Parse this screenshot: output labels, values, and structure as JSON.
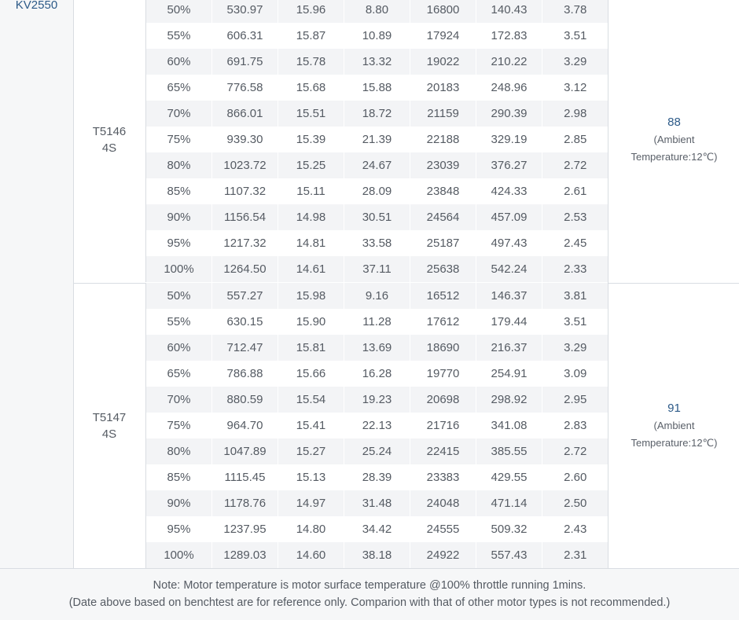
{
  "motor": {
    "kv": "KV2550"
  },
  "groups": [
    {
      "prop": "T5146",
      "cells": "4S",
      "max_temp": "88",
      "ambient_line1": "(Ambient",
      "ambient_line2": "Temperature:12℃)",
      "rows": [
        [
          "50%",
          "530.97",
          "15.96",
          "8.80",
          "16800",
          "140.43",
          "3.78"
        ],
        [
          "55%",
          "606.31",
          "15.87",
          "10.89",
          "17924",
          "172.83",
          "3.51"
        ],
        [
          "60%",
          "691.75",
          "15.78",
          "13.32",
          "19022",
          "210.22",
          "3.29"
        ],
        [
          "65%",
          "776.58",
          "15.68",
          "15.88",
          "20183",
          "248.96",
          "3.12"
        ],
        [
          "70%",
          "866.01",
          "15.51",
          "18.72",
          "21159",
          "290.39",
          "2.98"
        ],
        [
          "75%",
          "939.30",
          "15.39",
          "21.39",
          "22188",
          "329.19",
          "2.85"
        ],
        [
          "80%",
          "1023.72",
          "15.25",
          "24.67",
          "23039",
          "376.27",
          "2.72"
        ],
        [
          "85%",
          "1107.32",
          "15.11",
          "28.09",
          "23848",
          "424.33",
          "2.61"
        ],
        [
          "90%",
          "1156.54",
          "14.98",
          "30.51",
          "24564",
          "457.09",
          "2.53"
        ],
        [
          "95%",
          "1217.32",
          "14.81",
          "33.58",
          "25187",
          "497.43",
          "2.45"
        ],
        [
          "100%",
          "1264.50",
          "14.61",
          "37.11",
          "25638",
          "542.24",
          "2.33"
        ]
      ]
    },
    {
      "prop": "T5147",
      "cells": "4S",
      "max_temp": "91",
      "ambient_line1": "(Ambient",
      "ambient_line2": "Temperature:12℃)",
      "rows": [
        [
          "50%",
          "557.27",
          "15.98",
          "9.16",
          "16512",
          "146.37",
          "3.81"
        ],
        [
          "55%",
          "630.15",
          "15.90",
          "11.28",
          "17612",
          "179.44",
          "3.51"
        ],
        [
          "60%",
          "712.47",
          "15.81",
          "13.69",
          "18690",
          "216.37",
          "3.29"
        ],
        [
          "65%",
          "786.88",
          "15.66",
          "16.28",
          "19770",
          "254.91",
          "3.09"
        ],
        [
          "70%",
          "880.59",
          "15.54",
          "19.23",
          "20698",
          "298.92",
          "2.95"
        ],
        [
          "75%",
          "964.70",
          "15.41",
          "22.13",
          "21716",
          "341.08",
          "2.83"
        ],
        [
          "80%",
          "1047.89",
          "15.27",
          "25.24",
          "22415",
          "385.55",
          "2.72"
        ],
        [
          "85%",
          "1115.45",
          "15.13",
          "28.39",
          "23383",
          "429.55",
          "2.60"
        ],
        [
          "90%",
          "1178.76",
          "14.97",
          "31.48",
          "24048",
          "471.14",
          "2.50"
        ],
        [
          "95%",
          "1237.95",
          "14.80",
          "34.42",
          "24555",
          "509.32",
          "2.43"
        ],
        [
          "100%",
          "1289.03",
          "14.60",
          "38.18",
          "24922",
          "557.43",
          "2.31"
        ]
      ]
    }
  ],
  "note": {
    "line1": "Note: Motor temperature is motor surface temperature @100% throttle running 1mins.",
    "line2": "(Date above based on benchtest are for reference only. Comparion with that of other motor types is not recommended.)"
  }
}
